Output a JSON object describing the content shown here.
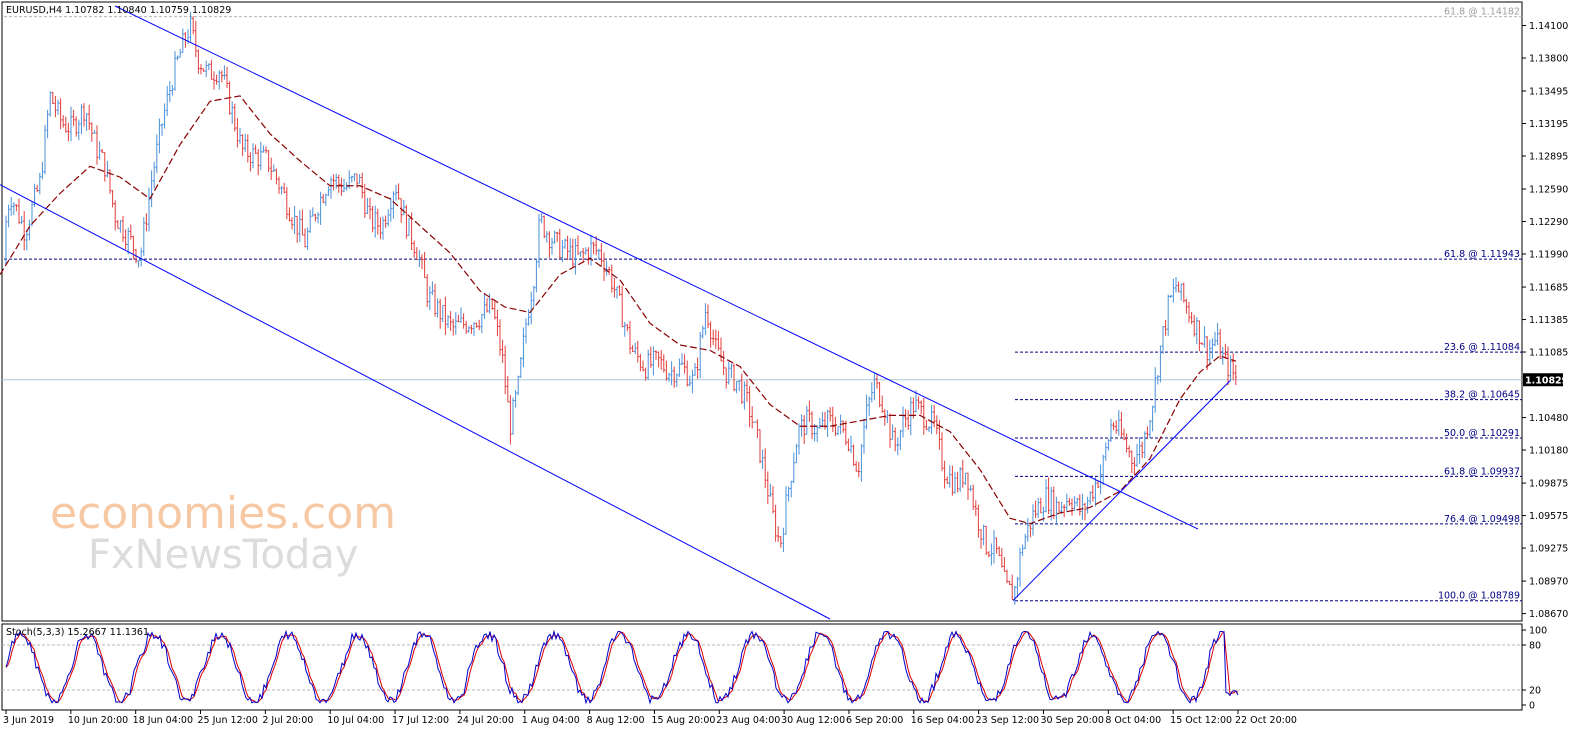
{
  "header": {
    "symbol_line": "EURUSD,H4  1.10782 1.10840 1.10759 1.10829",
    "stoch_line": "Stoch(5,3,3) 15.2667 11.1361"
  },
  "watermark": {
    "line1": "economies.com",
    "line2": "FxNewsToday"
  },
  "current_price": "1.10829",
  "colors": {
    "bull": "#4a90d9",
    "bear": "#e03c3c",
    "ma": "#8b0000",
    "channel": "#0000ff",
    "fib": "#000080",
    "stoch_main": "#0000cc",
    "stoch_signal": "#dd0000",
    "current_line": "#aac8dc"
  },
  "chart_data": {
    "type": "candlestick",
    "price_axis": {
      "ylim": [
        1.0862,
        1.1428
      ],
      "ticks": [
        "1.14100",
        "1.13800",
        "1.13495",
        "1.13195",
        "1.12895",
        "1.12590",
        "1.12290",
        "1.11990",
        "1.11685",
        "1.11385",
        "1.11085",
        "1.10480",
        "1.10180",
        "1.09875",
        "1.09575",
        "1.09275",
        "1.08970",
        "1.08670"
      ]
    },
    "time_axis": {
      "labels": [
        "3 Jun 2019",
        "10 Jun 20:00",
        "18 Jun 04:00",
        "25 Jun 12:00",
        "2 Jul 20:00",
        "10 Jul 04:00",
        "17 Jul 12:00",
        "24 Jul 20:00",
        "1 Aug 04:00",
        "8 Aug 12:00",
        "15 Aug 20:00",
        "23 Aug 04:00",
        "30 Aug 12:00",
        "6 Sep 20:00",
        "16 Sep 04:00",
        "23 Sep 12:00",
        "30 Sep 20:00",
        "8 Oct 04:00",
        "15 Oct 12:00",
        "22 Oct 20:00"
      ]
    },
    "price_path": [
      [
        0,
        1.119
      ],
      [
        10,
        1.1255
      ],
      [
        25,
        1.122
      ],
      [
        40,
        1.1265
      ],
      [
        50,
        1.1345
      ],
      [
        62,
        1.132
      ],
      [
        72,
        1.1315
      ],
      [
        85,
        1.1335
      ],
      [
        95,
        1.13
      ],
      [
        105,
        1.128
      ],
      [
        115,
        1.1235
      ],
      [
        128,
        1.1215
      ],
      [
        140,
        1.1195
      ],
      [
        152,
        1.127
      ],
      [
        162,
        1.132
      ],
      [
        172,
        1.136
      ],
      [
        182,
        1.139
      ],
      [
        190,
        1.141
      ],
      [
        198,
        1.138
      ],
      [
        208,
        1.1365
      ],
      [
        220,
        1.137
      ],
      [
        232,
        1.133
      ],
      [
        242,
        1.1295
      ],
      [
        255,
        1.129
      ],
      [
        268,
        1.1285
      ],
      [
        280,
        1.1262
      ],
      [
        292,
        1.1235
      ],
      [
        305,
        1.121
      ],
      [
        318,
        1.1245
      ],
      [
        330,
        1.127
      ],
      [
        345,
        1.126
      ],
      [
        358,
        1.127
      ],
      [
        370,
        1.123
      ],
      [
        382,
        1.1225
      ],
      [
        395,
        1.1265
      ],
      [
        405,
        1.123
      ],
      [
        418,
        1.12
      ],
      [
        428,
        1.116
      ],
      [
        440,
        1.1145
      ],
      [
        452,
        1.113
      ],
      [
        465,
        1.1135
      ],
      [
        478,
        1.114
      ],
      [
        492,
        1.115
      ],
      [
        502,
        1.1105
      ],
      [
        510,
        1.104
      ],
      [
        518,
        1.1075
      ],
      [
        526,
        1.1135
      ],
      [
        534,
        1.118
      ],
      [
        540,
        1.123
      ],
      [
        550,
        1.1215
      ],
      [
        560,
        1.1205
      ],
      [
        570,
        1.12
      ],
      [
        580,
        1.1195
      ],
      [
        590,
        1.1205
      ],
      [
        600,
        1.12
      ],
      [
        610,
        1.118
      ],
      [
        620,
        1.115
      ],
      [
        632,
        1.111
      ],
      [
        645,
        1.1095
      ],
      [
        658,
        1.11
      ],
      [
        670,
        1.109
      ],
      [
        682,
        1.1095
      ],
      [
        694,
        1.108
      ],
      [
        706,
        1.115
      ],
      [
        716,
        1.111
      ],
      [
        726,
        1.109
      ],
      [
        738,
        1.108
      ],
      [
        748,
        1.106
      ],
      [
        758,
        1.1025
      ],
      [
        766,
        1.099
      ],
      [
        772,
        1.096
      ],
      [
        780,
        1.093
      ],
      [
        788,
        1.098
      ],
      [
        798,
        1.1035
      ],
      [
        808,
        1.1045
      ],
      [
        818,
        1.1035
      ],
      [
        828,
        1.1045
      ],
      [
        838,
        1.104
      ],
      [
        848,
        1.103
      ],
      [
        858,
        1.1
      ],
      [
        866,
        1.105
      ],
      [
        874,
        1.108
      ],
      [
        884,
        1.106
      ],
      [
        894,
        1.102
      ],
      [
        904,
        1.1045
      ],
      [
        914,
        1.106
      ],
      [
        924,
        1.105
      ],
      [
        934,
        1.104
      ],
      [
        944,
        1.1
      ],
      [
        956,
        1.0985
      ],
      [
        966,
        1.1
      ],
      [
        976,
        1.096
      ],
      [
        986,
        1.093
      ],
      [
        996,
        1.0925
      ],
      [
        1006,
        1.089
      ],
      [
        1014,
        1.0885
      ],
      [
        1022,
        1.093
      ],
      [
        1034,
        1.096
      ],
      [
        1046,
        1.0975
      ],
      [
        1058,
        1.0965
      ],
      [
        1070,
        1.0975
      ],
      [
        1082,
        1.096
      ],
      [
        1092,
        1.098
      ],
      [
        1102,
        1.1
      ],
      [
        1112,
        1.1045
      ],
      [
        1122,
        1.103
      ],
      [
        1132,
        1.101
      ],
      [
        1142,
        1.102
      ],
      [
        1152,
        1.106
      ],
      [
        1160,
        1.111
      ],
      [
        1168,
        1.115
      ],
      [
        1176,
        1.117
      ],
      [
        1184,
        1.1155
      ],
      [
        1192,
        1.114
      ],
      [
        1200,
        1.1125
      ],
      [
        1208,
        1.111
      ],
      [
        1216,
        1.112
      ],
      [
        1224,
        1.11
      ],
      [
        1232,
        1.109
      ],
      [
        1237,
        1.1083
      ]
    ],
    "moving_average": [
      [
        0,
        1.118
      ],
      [
        30,
        1.1225
      ],
      [
        60,
        1.1255
      ],
      [
        90,
        1.128
      ],
      [
        120,
        1.127
      ],
      [
        150,
        1.125
      ],
      [
        180,
        1.13
      ],
      [
        210,
        1.134
      ],
      [
        240,
        1.1345
      ],
      [
        270,
        1.131
      ],
      [
        300,
        1.1285
      ],
      [
        330,
        1.1262
      ],
      [
        360,
        1.1262
      ],
      [
        390,
        1.125
      ],
      [
        420,
        1.1225
      ],
      [
        450,
        1.12
      ],
      [
        480,
        1.1165
      ],
      [
        505,
        1.115
      ],
      [
        530,
        1.1145
      ],
      [
        560,
        1.118
      ],
      [
        590,
        1.1195
      ],
      [
        620,
        1.1175
      ],
      [
        650,
        1.1135
      ],
      [
        680,
        1.1115
      ],
      [
        710,
        1.111
      ],
      [
        740,
        1.1095
      ],
      [
        770,
        1.106
      ],
      [
        800,
        1.104
      ],
      [
        830,
        1.104
      ],
      [
        860,
        1.1045
      ],
      [
        890,
        1.105
      ],
      [
        920,
        1.105
      ],
      [
        950,
        1.1035
      ],
      [
        980,
        1.1
      ],
      [
        1010,
        1.0955
      ],
      [
        1030,
        1.095
      ],
      [
        1060,
        1.096
      ],
      [
        1090,
        1.0965
      ],
      [
        1120,
        1.098
      ],
      [
        1150,
        1.101
      ],
      [
        1180,
        1.1065
      ],
      [
        1200,
        1.109
      ],
      [
        1220,
        1.1105
      ],
      [
        1236,
        1.11
      ]
    ],
    "channel_lines": [
      {
        "from": [
          0,
          1.1263
        ],
        "to": [
          830,
          1.0862
        ]
      },
      {
        "from": [
          115,
          1.1428
        ],
        "to": [
          1198,
          1.0945
        ]
      },
      {
        "from": [
          1013,
          1.0879
        ],
        "to": [
          1230,
          1.1082
        ]
      }
    ],
    "horizontal_levels": [
      {
        "price": 1.14182,
        "label": "61.8 @ 1.14182",
        "style": "grey"
      },
      {
        "price": 1.11943,
        "label": "61.8 @ 1.11943",
        "style": "fib"
      },
      {
        "price": 1.11084,
        "label": "23.6 @ 1.11084",
        "style": "fib"
      },
      {
        "price": 1.10645,
        "label": "38.2 @ 1.10645",
        "style": "fib"
      },
      {
        "price": 1.10291,
        "label": "50.0 @ 1.10291",
        "style": "fib"
      },
      {
        "price": 1.09937,
        "label": "61.8 @ 1.09937",
        "style": "fib"
      },
      {
        "price": 1.09498,
        "label": "76.4 @ 1.09498",
        "style": "fib"
      },
      {
        "price": 1.08789,
        "label": "100.0 @ 1.08789",
        "style": "fib"
      }
    ],
    "stochastic": {
      "ylim": [
        0,
        100
      ],
      "ticks": [
        "100",
        "80",
        "20",
        "0"
      ],
      "levels": [
        80,
        20
      ]
    }
  }
}
